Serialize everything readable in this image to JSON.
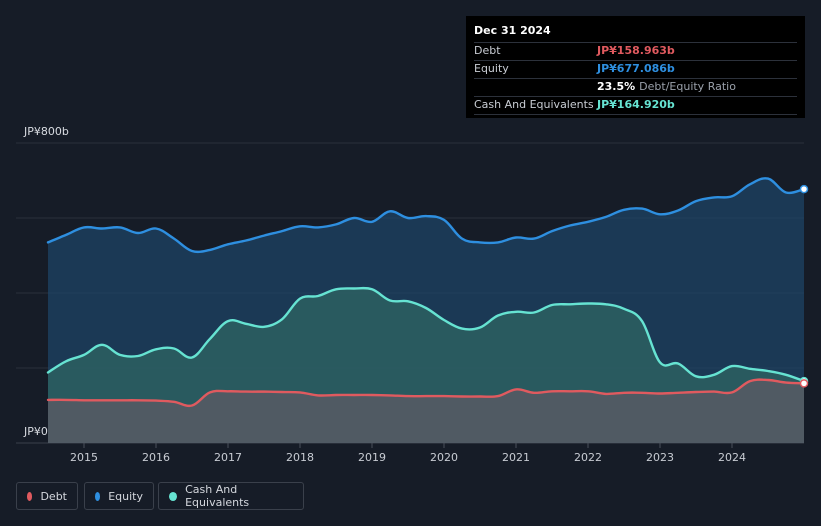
{
  "tooltip": {
    "date": "Dec 31 2024",
    "rows": [
      {
        "label": "Debt",
        "value": "JP¥158.963b",
        "color": "#e05a5f"
      },
      {
        "label": "Equity",
        "value": "JP¥677.086b",
        "color": "#2e8fe0"
      },
      {
        "label": "",
        "value": "23.5%",
        "note": "Debt/Equity Ratio",
        "color": "#ffffff"
      },
      {
        "label": "Cash And Equivalents",
        "value": "JP¥164.920b",
        "color": "#66e3d2"
      }
    ]
  },
  "legend": [
    {
      "label": "Debt",
      "color": "#e05a5f"
    },
    {
      "label": "Equity",
      "color": "#2e8fe0"
    },
    {
      "label": "Cash And Equivalents",
      "color": "#66e3d2"
    }
  ],
  "chart_data": {
    "type": "area",
    "y_top_label": "JP¥800b",
    "y_bottom_label": "JP¥0",
    "ylim": [
      0,
      800
    ],
    "xlim": [
      2014.5,
      2025.0
    ],
    "x_ticks": [
      "2015",
      "2016",
      "2017",
      "2018",
      "2019",
      "2020",
      "2021",
      "2022",
      "2023",
      "2024"
    ],
    "x_tick_values": [
      2015,
      2016,
      2017,
      2018,
      2019,
      2020,
      2021,
      2022,
      2023,
      2024
    ],
    "grid": true,
    "legend_position": "bottom-left",
    "series": [
      {
        "name": "Equity",
        "color": "#2e8fe0",
        "x": [
          2014.5,
          2014.75,
          2015.0,
          2015.25,
          2015.5,
          2015.75,
          2016.0,
          2016.25,
          2016.5,
          2016.75,
          2017.0,
          2017.25,
          2017.5,
          2017.75,
          2018.0,
          2018.25,
          2018.5,
          2018.75,
          2019.0,
          2019.25,
          2019.5,
          2019.75,
          2020.0,
          2020.25,
          2020.5,
          2020.75,
          2021.0,
          2021.25,
          2021.5,
          2021.75,
          2022.0,
          2022.25,
          2022.5,
          2022.75,
          2023.0,
          2023.25,
          2023.5,
          2023.75,
          2024.0,
          2024.25,
          2024.5,
          2024.75,
          2025.0
        ],
        "values": [
          535,
          555,
          575,
          572,
          575,
          560,
          572,
          545,
          512,
          515,
          530,
          540,
          553,
          565,
          578,
          575,
          583,
          600,
          590,
          618,
          600,
          605,
          595,
          545,
          535,
          535,
          548,
          545,
          565,
          580,
          590,
          603,
          622,
          625,
          610,
          620,
          645,
          655,
          658,
          690,
          705,
          668,
          677
        ]
      },
      {
        "name": "Cash And Equivalents",
        "color": "#66e3d2",
        "x": [
          2014.5,
          2014.75,
          2015.0,
          2015.25,
          2015.5,
          2015.75,
          2016.0,
          2016.25,
          2016.5,
          2016.75,
          2017.0,
          2017.25,
          2017.5,
          2017.75,
          2018.0,
          2018.25,
          2018.5,
          2018.75,
          2019.0,
          2019.25,
          2019.5,
          2019.75,
          2020.0,
          2020.25,
          2020.5,
          2020.75,
          2021.0,
          2021.25,
          2021.5,
          2021.75,
          2022.0,
          2022.25,
          2022.5,
          2022.75,
          2023.0,
          2023.25,
          2023.5,
          2023.75,
          2024.0,
          2024.25,
          2024.5,
          2024.75,
          2025.0
        ],
        "values": [
          188,
          218,
          235,
          262,
          235,
          232,
          250,
          252,
          228,
          278,
          325,
          318,
          310,
          330,
          385,
          392,
          410,
          412,
          410,
          380,
          378,
          360,
          328,
          305,
          308,
          340,
          350,
          348,
          368,
          370,
          372,
          370,
          358,
          325,
          215,
          212,
          178,
          182,
          205,
          198,
          192,
          182,
          165
        ]
      },
      {
        "name": "Debt",
        "color": "#e05a5f",
        "x": [
          2014.5,
          2014.75,
          2015.0,
          2015.25,
          2015.5,
          2015.75,
          2016.0,
          2016.25,
          2016.5,
          2016.75,
          2017.0,
          2017.25,
          2017.5,
          2017.75,
          2018.0,
          2018.25,
          2018.5,
          2018.75,
          2019.0,
          2019.25,
          2019.5,
          2019.75,
          2020.0,
          2020.25,
          2020.5,
          2020.75,
          2021.0,
          2021.25,
          2021.5,
          2021.75,
          2022.0,
          2022.25,
          2022.5,
          2022.75,
          2023.0,
          2023.25,
          2023.5,
          2023.75,
          2024.0,
          2024.25,
          2024.5,
          2024.75,
          2025.0
        ],
        "values": [
          115,
          115,
          114,
          114,
          114,
          114,
          113,
          110,
          100,
          135,
          138,
          137,
          137,
          136,
          135,
          127,
          128,
          128,
          128,
          127,
          125,
          125,
          125,
          124,
          124,
          125,
          143,
          134,
          138,
          138,
          138,
          131,
          134,
          134,
          132,
          134,
          136,
          137,
          135,
          165,
          168,
          161,
          159
        ]
      }
    ]
  }
}
